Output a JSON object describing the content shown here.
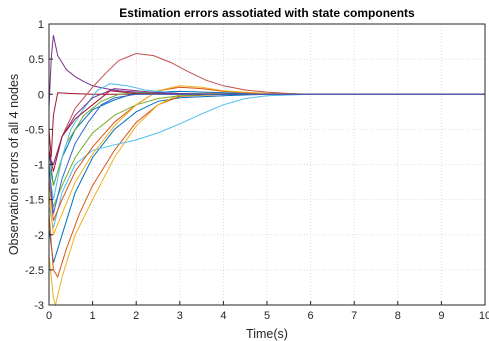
{
  "chart_data": {
    "type": "line",
    "title": "Estimation errors assotiated with state components",
    "xlabel": "Time(s)",
    "ylabel": "Observation errors of all 4 nodes",
    "xlim": [
      0,
      10
    ],
    "ylim": [
      -3,
      1
    ],
    "xticks": [
      "0",
      "1",
      "2",
      "3",
      "4",
      "5",
      "6",
      "7",
      "8",
      "9",
      "10"
    ],
    "yticks": [
      "-3",
      "-2.5",
      "-2",
      "-1.5",
      "-1",
      "-0.5",
      "0",
      "0.5",
      "1"
    ],
    "grid": true,
    "series": [
      {
        "color": "#0072BD",
        "x": [
          0,
          0.1,
          0.3,
          0.6,
          1.0,
          1.5,
          2.0,
          2.5,
          3.0,
          4.0,
          5.0,
          6.0,
          10
        ],
        "y": [
          -1.9,
          -2.4,
          -2.0,
          -1.4,
          -0.9,
          -0.5,
          -0.25,
          -0.1,
          -0.05,
          -0.02,
          0,
          0,
          0
        ]
      },
      {
        "color": "#D95319",
        "x": [
          0,
          0.1,
          0.2,
          0.4,
          0.7,
          1.0,
          1.5,
          2.0,
          2.5,
          3.0,
          4.0,
          5.0,
          6.0,
          10
        ],
        "y": [
          -1.7,
          -2.5,
          -2.6,
          -2.2,
          -1.7,
          -1.3,
          -0.8,
          -0.4,
          -0.15,
          -0.03,
          0,
          0,
          0,
          0
        ]
      },
      {
        "color": "#EDB120",
        "x": [
          0,
          0.1,
          0.15,
          0.3,
          0.6,
          1.0,
          1.5,
          2.0,
          2.5,
          3.0,
          4.0,
          5.0,
          6.0,
          10
        ],
        "y": [
          -2.3,
          -2.9,
          -3.0,
          -2.6,
          -2.0,
          -1.5,
          -0.9,
          -0.45,
          -0.15,
          0,
          0.02,
          0,
          0,
          0
        ]
      },
      {
        "color": "#7E2F8E",
        "x": [
          0,
          0.05,
          0.1,
          0.2,
          0.4,
          0.6,
          0.8,
          1.0,
          1.3,
          1.6,
          2.0,
          2.5,
          3.0,
          4.0,
          5.0,
          10
        ],
        "y": [
          -0.2,
          0.5,
          0.84,
          0.55,
          0.35,
          0.25,
          0.18,
          0.12,
          0.08,
          0.05,
          0.03,
          0.01,
          0,
          0,
          0,
          0
        ]
      },
      {
        "color": "#77AC30",
        "x": [
          0,
          0.1,
          0.3,
          0.6,
          1.0,
          1.5,
          2.0,
          2.5,
          3.0,
          4.0,
          5.0,
          10
        ],
        "y": [
          -1.3,
          -1.6,
          -1.3,
          -0.9,
          -0.55,
          -0.3,
          -0.15,
          -0.06,
          -0.02,
          0,
          0,
          0
        ]
      },
      {
        "color": "#4DBEEE",
        "x": [
          0,
          0.1,
          0.3,
          0.6,
          1.0,
          1.5,
          2.0,
          2.5,
          3.0,
          3.5,
          4.0,
          4.5,
          5.0,
          6.0,
          10
        ],
        "y": [
          -1.6,
          -1.9,
          -1.4,
          -1.0,
          -0.8,
          -0.72,
          -0.65,
          -0.55,
          -0.42,
          -0.28,
          -0.15,
          -0.06,
          -0.02,
          0,
          0
        ]
      },
      {
        "color": "#A2142F",
        "x": [
          0,
          0.05,
          0.1,
          0.2,
          0.5,
          1.0,
          2.0,
          10
        ],
        "y": [
          -0.5,
          -0.9,
          -0.3,
          0.02,
          0.01,
          0,
          0,
          0
        ]
      },
      {
        "color": "#C0504D",
        "x": [
          0,
          0.1,
          0.3,
          0.6,
          1.0,
          1.3,
          1.6,
          2.0,
          2.4,
          2.8,
          3.2,
          3.6,
          4.0,
          4.5,
          5.0,
          5.5,
          6.0,
          7.0,
          10
        ],
        "y": [
          -0.9,
          -1.0,
          -0.6,
          -0.2,
          0.1,
          0.3,
          0.48,
          0.58,
          0.55,
          0.45,
          0.32,
          0.2,
          0.12,
          0.06,
          0.03,
          0.01,
          0,
          0,
          0
        ]
      },
      {
        "color": "#0072BD",
        "x": [
          0,
          0.1,
          0.3,
          0.6,
          1.0,
          1.5,
          2.0,
          3.0,
          4.0,
          5.0,
          10
        ],
        "y": [
          -0.8,
          -1.3,
          -0.9,
          -0.5,
          -0.22,
          -0.08,
          0.02,
          0.04,
          0.02,
          0,
          0
        ]
      },
      {
        "color": "#D95319",
        "x": [
          0,
          0.1,
          0.3,
          0.6,
          1.0,
          1.5,
          2.0,
          2.5,
          3.0,
          3.5,
          4.0,
          5.0,
          6.0,
          10
        ],
        "y": [
          -1.2,
          -1.8,
          -1.5,
          -1.1,
          -0.75,
          -0.4,
          -0.15,
          0.05,
          0.1,
          0.08,
          0.04,
          0.01,
          0,
          0
        ]
      },
      {
        "color": "#EDB120",
        "x": [
          0,
          0.1,
          0.3,
          0.6,
          1.0,
          1.5,
          2.0,
          2.5,
          3.0,
          3.5,
          4.0,
          5.0,
          6.0,
          10
        ],
        "y": [
          -1.4,
          -2.0,
          -1.7,
          -1.25,
          -0.85,
          -0.45,
          -0.15,
          0.05,
          0.12,
          0.1,
          0.05,
          0.01,
          0,
          0
        ]
      },
      {
        "color": "#77AC30",
        "x": [
          0,
          0.1,
          0.4,
          0.8,
          1.2,
          1.6,
          2.0,
          3.0,
          4.0,
          10
        ],
        "y": [
          -1.0,
          -1.3,
          -0.7,
          -0.3,
          -0.1,
          0.0,
          0.02,
          0.01,
          0,
          0
        ]
      },
      {
        "color": "#4DBEEE",
        "x": [
          0,
          0.1,
          0.3,
          0.5,
          0.8,
          1.1,
          1.4,
          1.8,
          2.2,
          3.0,
          4.0,
          10
        ],
        "y": [
          -1.1,
          -1.5,
          -0.9,
          -0.5,
          -0.2,
          0.05,
          0.15,
          0.12,
          0.06,
          0.01,
          0,
          0
        ]
      },
      {
        "color": "#7E2F8E",
        "x": [
          0,
          0.1,
          0.3,
          0.6,
          1.0,
          1.5,
          2.0,
          2.5,
          3.0,
          4.0,
          10
        ],
        "y": [
          -0.9,
          -1.0,
          -0.6,
          -0.3,
          -0.05,
          0.08,
          0.05,
          0.02,
          0.01,
          0,
          0
        ]
      },
      {
        "color": "#A2142F",
        "x": [
          0,
          0.1,
          0.3,
          0.6,
          0.9,
          1.2,
          1.4,
          1.7,
          2.0,
          3.0,
          10
        ],
        "y": [
          -0.8,
          -1.1,
          -0.6,
          -0.35,
          -0.2,
          -0.05,
          0.05,
          0.03,
          0.01,
          0,
          0
        ]
      },
      {
        "color": "#3366CC",
        "x": [
          0,
          0.1,
          0.3,
          0.6,
          0.9,
          1.2,
          1.5,
          2.0,
          3.0,
          4.0,
          10
        ],
        "y": [
          -1.0,
          -1.7,
          -1.2,
          -0.7,
          -0.4,
          -0.15,
          -0.05,
          0,
          0,
          0,
          0
        ]
      }
    ]
  }
}
